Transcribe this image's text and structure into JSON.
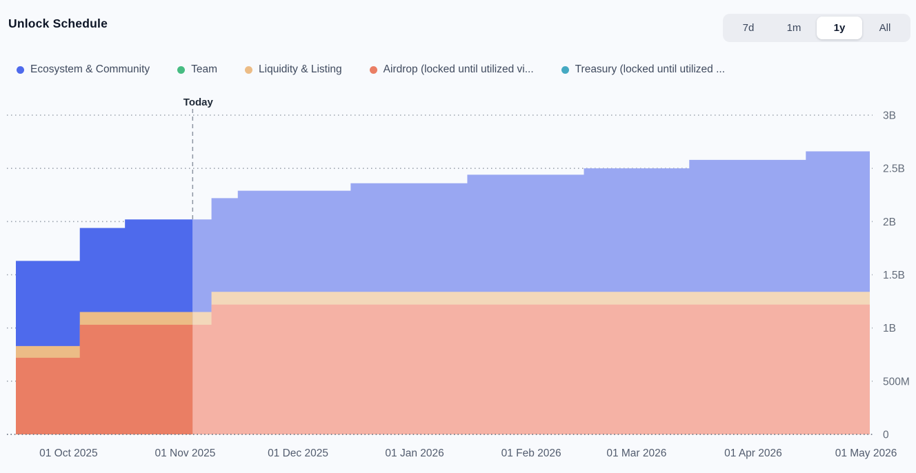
{
  "header": {
    "title": "Unlock Schedule",
    "ranges": [
      "7d",
      "1m",
      "1y",
      "All"
    ],
    "active_range": "1y"
  },
  "legend": [
    {
      "label": "Ecosystem & Community",
      "color": "#4E6AEC"
    },
    {
      "label": "Team",
      "color": "#47BC82"
    },
    {
      "label": "Liquidity & Listing",
      "color": "#ECBC86"
    },
    {
      "label": "Airdrop (locked until utilized vi...",
      "color": "#EA7E64"
    },
    {
      "label": "Treasury (locked until utilized ...",
      "color": "#45A9C2"
    }
  ],
  "chart_data": {
    "type": "area",
    "stacked": true,
    "step": true,
    "title": "Unlock Schedule",
    "unit": "B tokens",
    "ylim": [
      0,
      3
    ],
    "x_domain": [
      "2025-09-17",
      "2026-05-02"
    ],
    "today": "2025-11-03",
    "today_label": "Today",
    "grid": true,
    "legend_position": "top",
    "y_ticks": [
      {
        "value": 0,
        "label": "0"
      },
      {
        "value": 0.5,
        "label": "500M"
      },
      {
        "value": 1,
        "label": "1B"
      },
      {
        "value": 1.5,
        "label": "1.5B"
      },
      {
        "value": 2,
        "label": "2B"
      },
      {
        "value": 2.5,
        "label": "2.5B"
      },
      {
        "value": 3,
        "label": "3B"
      }
    ],
    "x_ticks": [
      {
        "date": "2025-10-01",
        "label": "01 Oct 2025"
      },
      {
        "date": "2025-11-01",
        "label": "01 Nov 2025"
      },
      {
        "date": "2025-12-01",
        "label": "01 Dec 2025"
      },
      {
        "date": "2026-01-01",
        "label": "01 Jan 2026"
      },
      {
        "date": "2026-02-01",
        "label": "01 Feb 2026"
      },
      {
        "date": "2026-03-01",
        "label": "01 Mar 2026"
      },
      {
        "date": "2026-04-01",
        "label": "01 Apr 2026"
      },
      {
        "date": "2026-05-01",
        "label": "01 May 2026"
      }
    ],
    "events": [
      "2025-09-17",
      "2025-10-04",
      "2025-10-16",
      "2025-11-08",
      "2025-11-15",
      "2025-12-15",
      "2026-01-15",
      "2026-02-15",
      "2026-03-15",
      "2026-04-15"
    ],
    "series": [
      {
        "name": "Airdrop (locked until utilized vi...",
        "color": "#EA7E64",
        "color_future": "#F5B2A5",
        "values": [
          0.72,
          1.03,
          1.03,
          1.22,
          1.22,
          1.22,
          1.22,
          1.22,
          1.22,
          1.22
        ]
      },
      {
        "name": "Liquidity & Listing",
        "color": "#ECBC86",
        "color_future": "#F3D8BA",
        "values": [
          0.11,
          0.12,
          0.12,
          0.12,
          0.12,
          0.12,
          0.12,
          0.12,
          0.12,
          0.12
        ]
      },
      {
        "name": "Ecosystem & Community",
        "color": "#4E6AEC",
        "color_future": "#99A7F2",
        "values": [
          0.8,
          0.79,
          0.87,
          0.88,
          0.95,
          1.02,
          1.1,
          1.16,
          1.24,
          1.32
        ]
      },
      {
        "name": "Team",
        "color": "#47BC82",
        "color_future": "#A9E0C4",
        "values": [
          0,
          0,
          0,
          0,
          0,
          0,
          0,
          0,
          0,
          0
        ]
      },
      {
        "name": "Treasury (locked until utilized ...",
        "color": "#45A9C2",
        "color_future": "#A8D8E4",
        "values": [
          0,
          0,
          0,
          0,
          0,
          0,
          0,
          0,
          0,
          0
        ]
      }
    ]
  }
}
